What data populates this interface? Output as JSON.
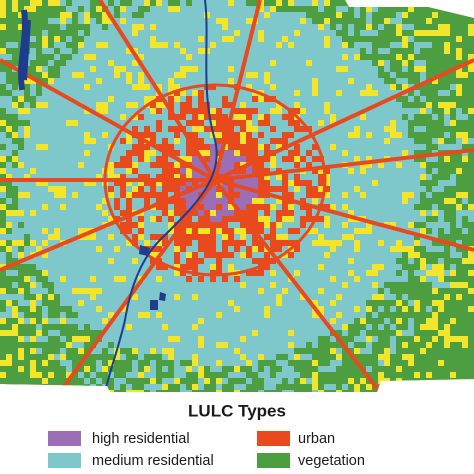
{
  "legend": {
    "title": "LULC Types",
    "items": [
      {
        "label": "high residential",
        "color": "#9b6fb6"
      },
      {
        "label": "urban",
        "color": "#e8491d"
      },
      {
        "label": "medium residential",
        "color": "#7ec8cc"
      },
      {
        "label": "vegetation",
        "color": "#4c9e40"
      }
    ]
  }
}
